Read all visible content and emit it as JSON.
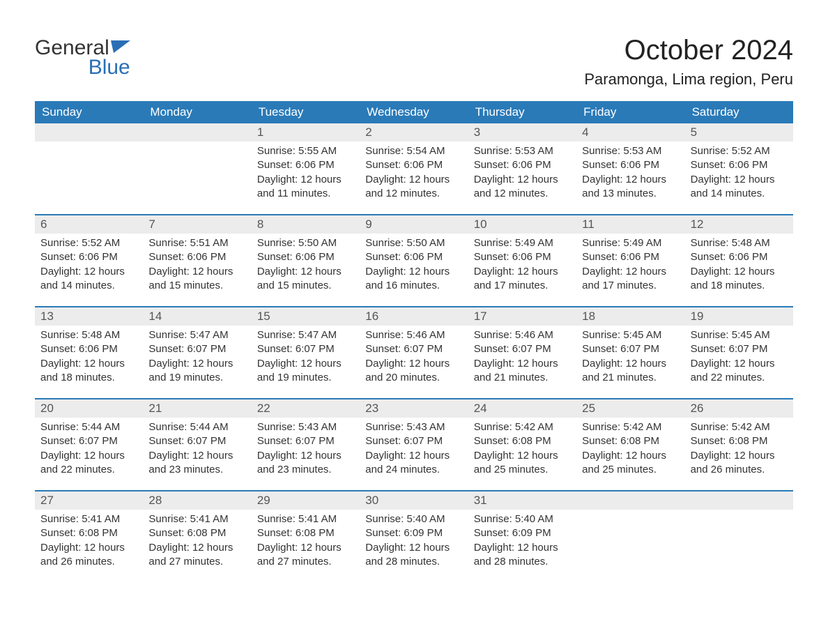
{
  "logo": {
    "word1": "General",
    "word2": "Blue"
  },
  "title": "October 2024",
  "location": "Paramonga, Lima region, Peru",
  "colors": {
    "header_bg": "#2a7ab8",
    "header_text": "#ffffff",
    "daynum_bg": "#ececec",
    "week_border": "#2a7ab8",
    "body_text": "#333333",
    "logo_blue": "#2a6fb5"
  },
  "layout": {
    "columns": 7,
    "font_family": "Arial",
    "title_fontsize": 40,
    "location_fontsize": 22,
    "header_fontsize": 17,
    "cell_fontsize": 15
  },
  "day_names": [
    "Sunday",
    "Monday",
    "Tuesday",
    "Wednesday",
    "Thursday",
    "Friday",
    "Saturday"
  ],
  "labels": {
    "sunrise": "Sunrise: ",
    "sunset": "Sunset: ",
    "daylight": "Daylight: "
  },
  "weeks": [
    [
      {
        "day": "",
        "sunrise": "",
        "sunset": "",
        "daylight": ""
      },
      {
        "day": "",
        "sunrise": "",
        "sunset": "",
        "daylight": ""
      },
      {
        "day": "1",
        "sunrise": "5:55 AM",
        "sunset": "6:06 PM",
        "daylight": "12 hours and 11 minutes."
      },
      {
        "day": "2",
        "sunrise": "5:54 AM",
        "sunset": "6:06 PM",
        "daylight": "12 hours and 12 minutes."
      },
      {
        "day": "3",
        "sunrise": "5:53 AM",
        "sunset": "6:06 PM",
        "daylight": "12 hours and 12 minutes."
      },
      {
        "day": "4",
        "sunrise": "5:53 AM",
        "sunset": "6:06 PM",
        "daylight": "12 hours and 13 minutes."
      },
      {
        "day": "5",
        "sunrise": "5:52 AM",
        "sunset": "6:06 PM",
        "daylight": "12 hours and 14 minutes."
      }
    ],
    [
      {
        "day": "6",
        "sunrise": "5:52 AM",
        "sunset": "6:06 PM",
        "daylight": "12 hours and 14 minutes."
      },
      {
        "day": "7",
        "sunrise": "5:51 AM",
        "sunset": "6:06 PM",
        "daylight": "12 hours and 15 minutes."
      },
      {
        "day": "8",
        "sunrise": "5:50 AM",
        "sunset": "6:06 PM",
        "daylight": "12 hours and 15 minutes."
      },
      {
        "day": "9",
        "sunrise": "5:50 AM",
        "sunset": "6:06 PM",
        "daylight": "12 hours and 16 minutes."
      },
      {
        "day": "10",
        "sunrise": "5:49 AM",
        "sunset": "6:06 PM",
        "daylight": "12 hours and 17 minutes."
      },
      {
        "day": "11",
        "sunrise": "5:49 AM",
        "sunset": "6:06 PM",
        "daylight": "12 hours and 17 minutes."
      },
      {
        "day": "12",
        "sunrise": "5:48 AM",
        "sunset": "6:06 PM",
        "daylight": "12 hours and 18 minutes."
      }
    ],
    [
      {
        "day": "13",
        "sunrise": "5:48 AM",
        "sunset": "6:06 PM",
        "daylight": "12 hours and 18 minutes."
      },
      {
        "day": "14",
        "sunrise": "5:47 AM",
        "sunset": "6:07 PM",
        "daylight": "12 hours and 19 minutes."
      },
      {
        "day": "15",
        "sunrise": "5:47 AM",
        "sunset": "6:07 PM",
        "daylight": "12 hours and 19 minutes."
      },
      {
        "day": "16",
        "sunrise": "5:46 AM",
        "sunset": "6:07 PM",
        "daylight": "12 hours and 20 minutes."
      },
      {
        "day": "17",
        "sunrise": "5:46 AM",
        "sunset": "6:07 PM",
        "daylight": "12 hours and 21 minutes."
      },
      {
        "day": "18",
        "sunrise": "5:45 AM",
        "sunset": "6:07 PM",
        "daylight": "12 hours and 21 minutes."
      },
      {
        "day": "19",
        "sunrise": "5:45 AM",
        "sunset": "6:07 PM",
        "daylight": "12 hours and 22 minutes."
      }
    ],
    [
      {
        "day": "20",
        "sunrise": "5:44 AM",
        "sunset": "6:07 PM",
        "daylight": "12 hours and 22 minutes."
      },
      {
        "day": "21",
        "sunrise": "5:44 AM",
        "sunset": "6:07 PM",
        "daylight": "12 hours and 23 minutes."
      },
      {
        "day": "22",
        "sunrise": "5:43 AM",
        "sunset": "6:07 PM",
        "daylight": "12 hours and 23 minutes."
      },
      {
        "day": "23",
        "sunrise": "5:43 AM",
        "sunset": "6:07 PM",
        "daylight": "12 hours and 24 minutes."
      },
      {
        "day": "24",
        "sunrise": "5:42 AM",
        "sunset": "6:08 PM",
        "daylight": "12 hours and 25 minutes."
      },
      {
        "day": "25",
        "sunrise": "5:42 AM",
        "sunset": "6:08 PM",
        "daylight": "12 hours and 25 minutes."
      },
      {
        "day": "26",
        "sunrise": "5:42 AM",
        "sunset": "6:08 PM",
        "daylight": "12 hours and 26 minutes."
      }
    ],
    [
      {
        "day": "27",
        "sunrise": "5:41 AM",
        "sunset": "6:08 PM",
        "daylight": "12 hours and 26 minutes."
      },
      {
        "day": "28",
        "sunrise": "5:41 AM",
        "sunset": "6:08 PM",
        "daylight": "12 hours and 27 minutes."
      },
      {
        "day": "29",
        "sunrise": "5:41 AM",
        "sunset": "6:08 PM",
        "daylight": "12 hours and 27 minutes."
      },
      {
        "day": "30",
        "sunrise": "5:40 AM",
        "sunset": "6:09 PM",
        "daylight": "12 hours and 28 minutes."
      },
      {
        "day": "31",
        "sunrise": "5:40 AM",
        "sunset": "6:09 PM",
        "daylight": "12 hours and 28 minutes."
      },
      {
        "day": "",
        "sunrise": "",
        "sunset": "",
        "daylight": ""
      },
      {
        "day": "",
        "sunrise": "",
        "sunset": "",
        "daylight": ""
      }
    ]
  ]
}
